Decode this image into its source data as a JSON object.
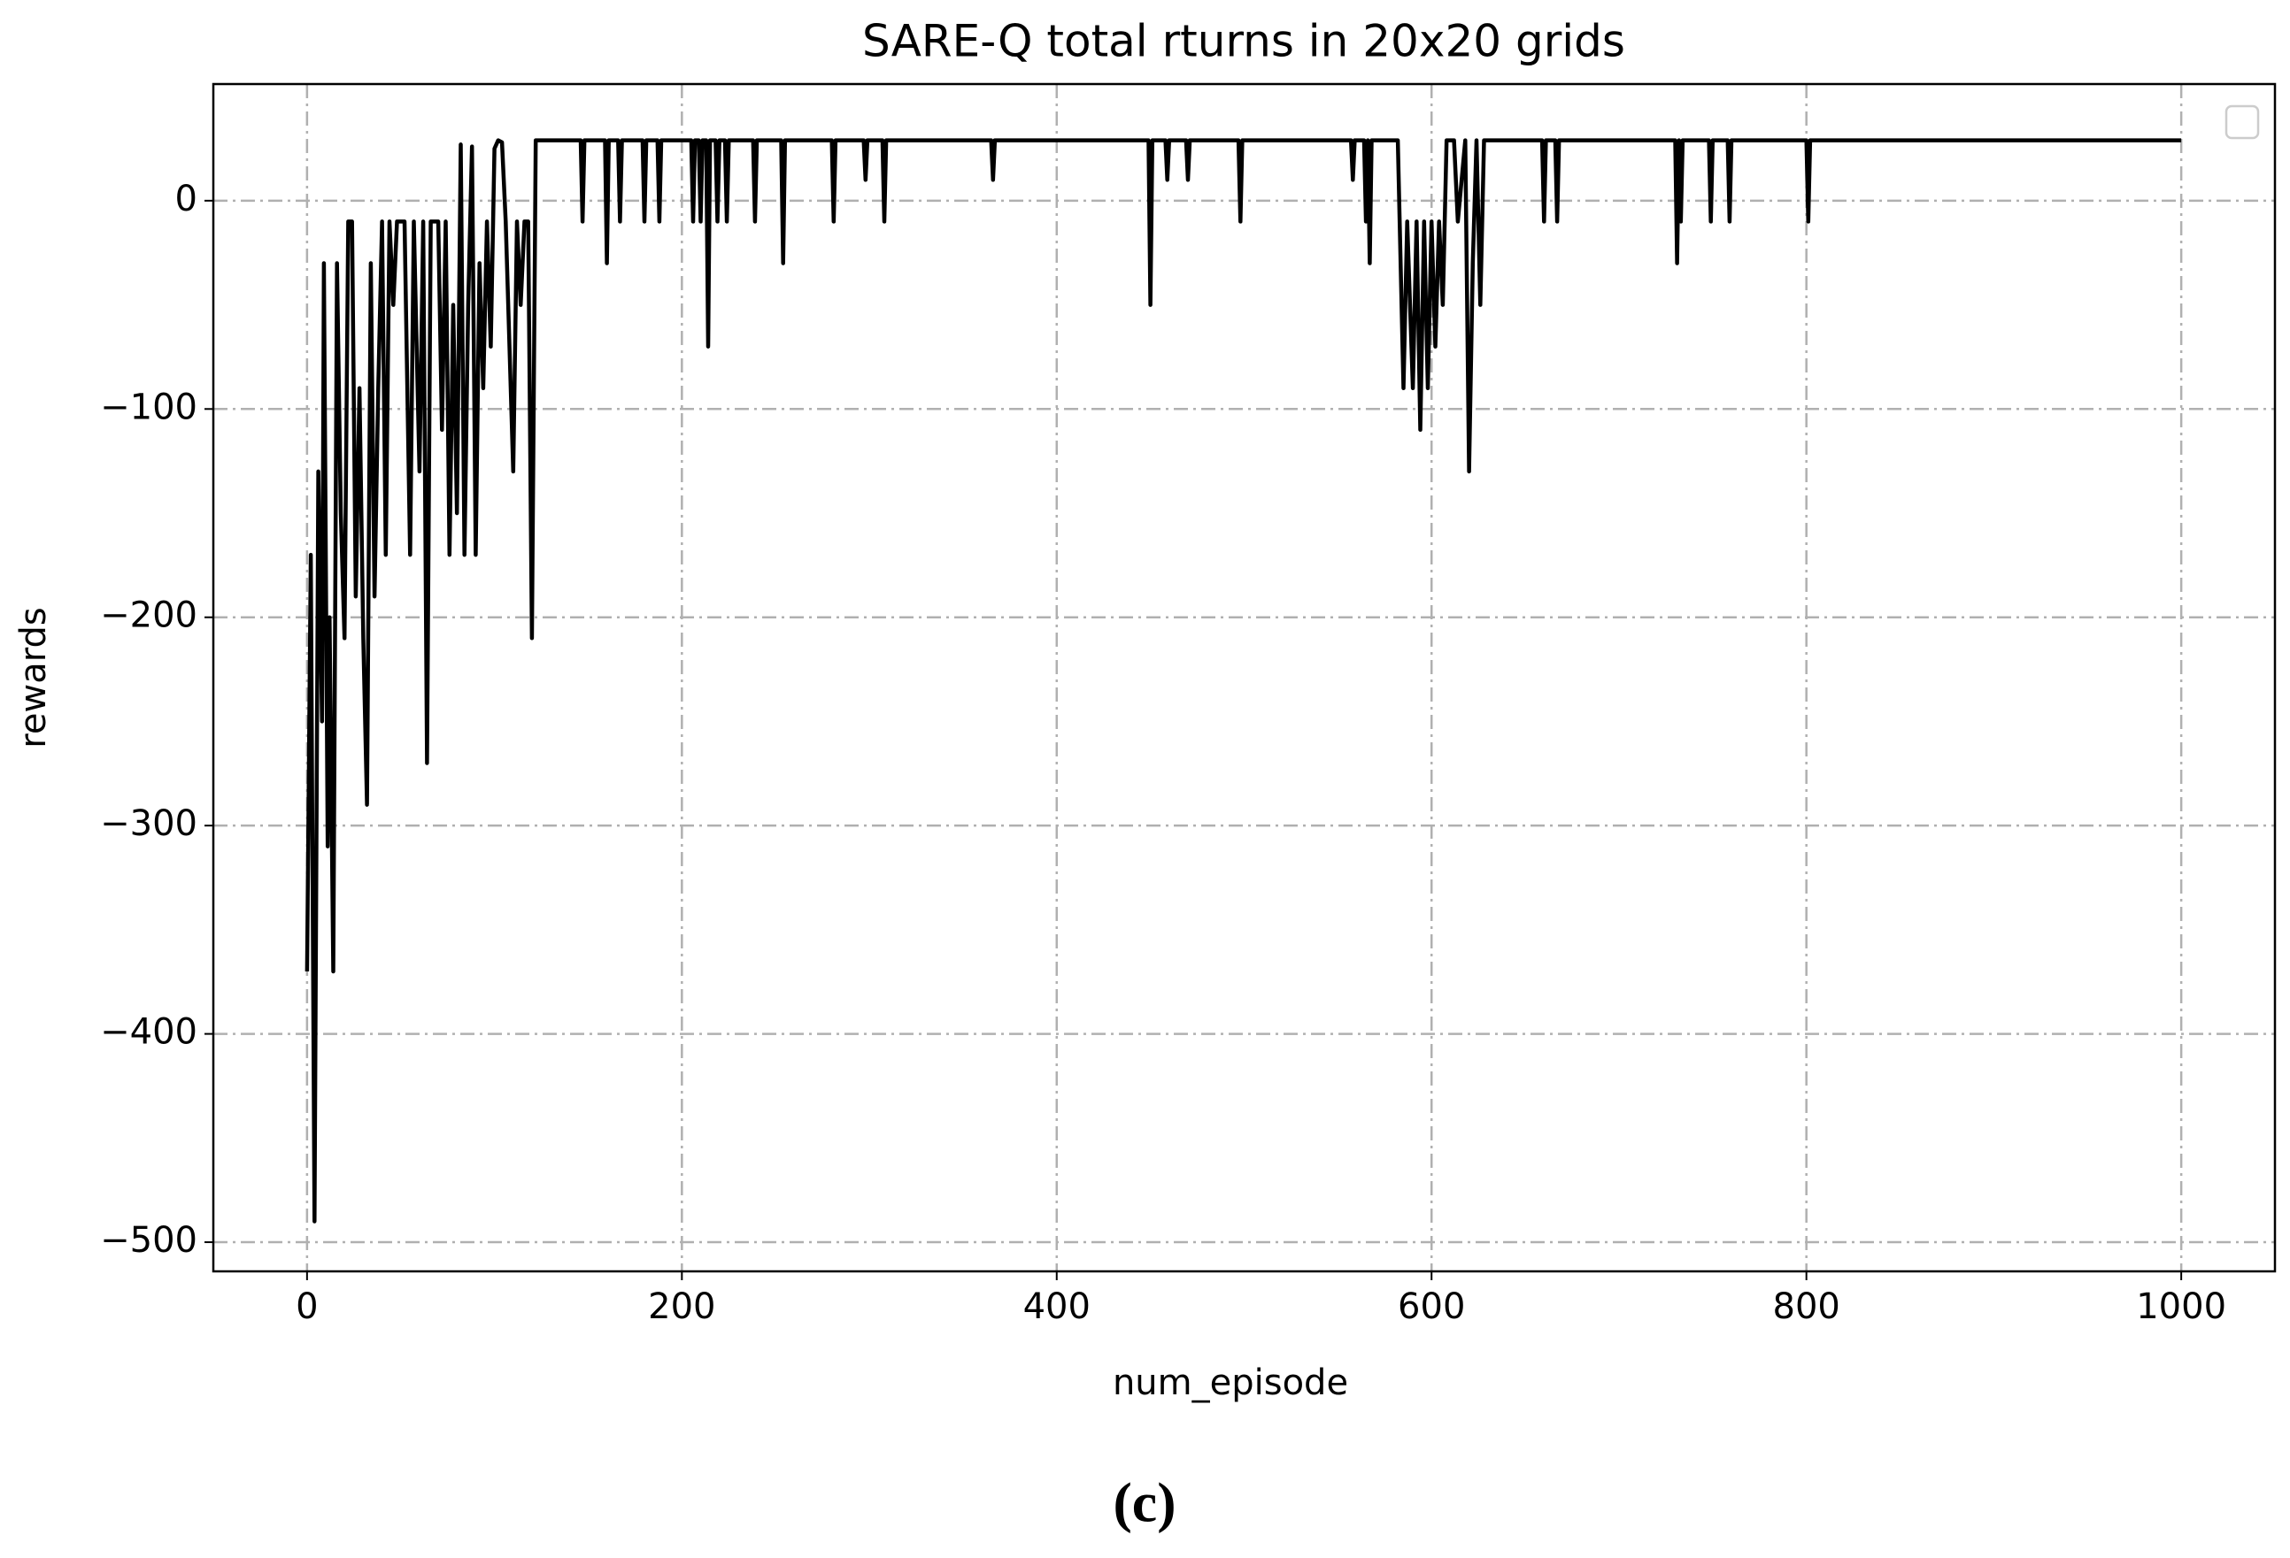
{
  "chart_data": {
    "type": "line",
    "title": "SARE-Q total rturns in 20x20 grids",
    "xlabel": "num_episode",
    "ylabel": "rewards",
    "caption": "(c)",
    "grid": true,
    "legend": "upper right",
    "xlim": [
      -50,
      1050
    ],
    "ylim": [
      -514,
      56
    ],
    "xticks": [
      0,
      200,
      400,
      600,
      800,
      1000
    ],
    "yticks": [
      {
        "value": -500,
        "label": "−500"
      },
      {
        "value": -400,
        "label": "−400"
      },
      {
        "value": -300,
        "label": "−300"
      },
      {
        "value": -200,
        "label": "−200"
      },
      {
        "value": -100,
        "label": "−100"
      },
      0
    ],
    "series": [
      {
        "color": "#000000",
        "x": [
          0,
          2,
          4,
          6,
          8,
          9,
          11,
          12,
          14,
          16,
          18,
          20,
          22,
          24,
          26,
          28,
          30,
          32,
          34,
          36,
          38,
          40,
          42,
          44,
          46,
          48,
          50,
          52,
          55,
          57,
          60,
          62,
          64,
          66,
          70,
          72,
          74,
          76,
          78,
          80,
          82,
          84,
          86,
          88,
          90,
          92,
          94,
          96,
          98,
          100,
          102,
          104,
          106,
          110,
          112,
          114,
          116,
          118,
          120,
          122,
          146,
          147,
          148,
          159,
          160,
          161,
          166,
          167,
          168,
          179,
          180,
          181,
          187,
          188,
          189,
          205,
          206,
          207,
          209,
          210,
          211,
          213,
          214,
          215,
          218,
          219,
          220,
          223,
          224,
          225,
          238,
          239,
          240,
          253,
          254,
          255,
          280,
          281,
          282,
          297,
          298,
          299,
          307,
          308,
          309,
          365,
          366,
          367,
          449,
          450,
          451,
          458,
          459,
          460,
          469,
          470,
          471,
          497,
          498,
          499,
          557,
          558,
          559,
          564,
          565,
          566,
          567,
          568,
          582,
          585,
          587,
          590,
          592,
          594,
          596,
          598,
          600,
          602,
          604,
          606,
          608,
          612,
          614,
          618,
          620,
          622,
          624,
          626,
          628,
          659,
          660,
          661,
          666,
          667,
          668,
          730,
          731,
          732,
          733,
          734,
          748,
          749,
          750,
          758,
          759,
          760,
          800,
          801,
          802,
          1000
        ],
        "values": [
          -370,
          -170,
          -490,
          -130,
          -250,
          -30,
          -310,
          -200,
          -370,
          -30,
          -150,
          -210,
          -10,
          -10,
          -190,
          -90,
          -210,
          -290,
          -30,
          -190,
          -90,
          -10,
          -170,
          -10,
          -50,
          -10,
          -10,
          -10,
          -170,
          -10,
          -130,
          -10,
          -270,
          -10,
          -10,
          -110,
          -10,
          -170,
          -50,
          -150,
          27,
          -170,
          -50,
          26,
          -170,
          -30,
          -90,
          -10,
          -70,
          25,
          29,
          28,
          -10,
          -130,
          -10,
          -50,
          -10,
          -10,
          -210,
          29,
          29,
          -10,
          29,
          29,
          -30,
          29,
          29,
          -10,
          29,
          29,
          -10,
          29,
          29,
          -10,
          29,
          29,
          -10,
          29,
          29,
          -10,
          29,
          29,
          -70,
          29,
          29,
          -10,
          29,
          29,
          -10,
          29,
          29,
          -10,
          29,
          29,
          -30,
          29,
          29,
          -10,
          29,
          29,
          10,
          29,
          29,
          -10,
          29,
          29,
          10,
          29,
          29,
          -50,
          29,
          29,
          10,
          29,
          29,
          10,
          29,
          29,
          -10,
          29,
          29,
          10,
          29,
          29,
          -10,
          29,
          -30,
          29,
          29,
          -90,
          -10,
          -90,
          -10,
          -110,
          -10,
          -90,
          -10,
          -70,
          -10,
          -50,
          29,
          29,
          -10,
          29,
          -130,
          -30,
          29,
          -50,
          29,
          29,
          -10,
          29,
          29,
          -10,
          29,
          29,
          -30,
          29,
          -10,
          29,
          29,
          -10,
          29,
          29,
          -10,
          29,
          29,
          -10,
          29,
          29
        ]
      }
    ]
  }
}
